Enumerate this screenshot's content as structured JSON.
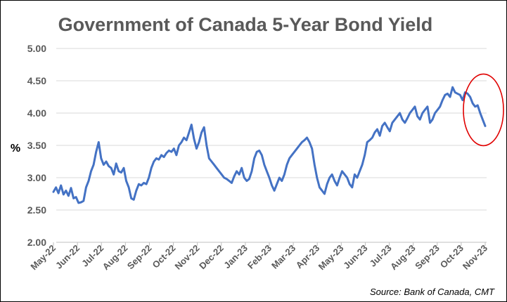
{
  "chart_data": {
    "type": "line",
    "title": "Government of Canada 5-Year Bond Yield",
    "ylabel": "%",
    "xlabel": "",
    "source": "Source: Bank of Canada, CMT",
    "ylim": [
      2.0,
      5.0
    ],
    "y_ticks": [
      "2.00",
      "2.50",
      "3.00",
      "3.50",
      "4.00",
      "4.50",
      "5.00"
    ],
    "x_ticks": [
      "May-22",
      "Jun-22",
      "Jul-22",
      "Aug-22",
      "Sep-22",
      "Oct-22",
      "Nov-22",
      "Dec-22",
      "Jan-23",
      "Feb-23",
      "Mar-23",
      "Apr-23",
      "May-23",
      "Jun-23",
      "Jul-23",
      "Aug-23",
      "Sep-23",
      "Oct-23",
      "Nov-23"
    ],
    "grid": true,
    "line_color": "#4472C4",
    "annotation": {
      "type": "red-ellipse",
      "color": "#E00000",
      "around": "Nov-23"
    },
    "series": [
      {
        "x_start": "May-22",
        "x_end": "Nov-23",
        "values": [
          2.78,
          2.85,
          2.76,
          2.88,
          2.74,
          2.8,
          2.72,
          2.84,
          2.68,
          2.7,
          2.61,
          2.62,
          2.64,
          2.85,
          2.95,
          3.1,
          3.2,
          3.4,
          3.55,
          3.3,
          3.2,
          3.25,
          3.18,
          3.15,
          3.05,
          3.22,
          3.1,
          3.08,
          3.15,
          2.95,
          2.85,
          2.68,
          2.66,
          2.8,
          2.9,
          2.88,
          2.92,
          2.9,
          3.0,
          3.15,
          3.25,
          3.3,
          3.28,
          3.35,
          3.32,
          3.38,
          3.42,
          3.4,
          3.45,
          3.35,
          3.5,
          3.55,
          3.62,
          3.58,
          3.7,
          3.82,
          3.6,
          3.45,
          3.55,
          3.7,
          3.78,
          3.5,
          3.3,
          3.25,
          3.2,
          3.15,
          3.1,
          3.05,
          3.0,
          2.98,
          2.95,
          2.92,
          3.02,
          3.1,
          3.05,
          3.15,
          3.0,
          2.95,
          2.98,
          3.1,
          3.3,
          3.4,
          3.42,
          3.35,
          3.2,
          3.1,
          3.0,
          2.88,
          2.8,
          2.9,
          3.0,
          2.95,
          3.05,
          3.2,
          3.3,
          3.35,
          3.4,
          3.45,
          3.5,
          3.55,
          3.58,
          3.62,
          3.55,
          3.45,
          3.2,
          3.0,
          2.85,
          2.8,
          2.75,
          2.9,
          3.0,
          3.05,
          2.95,
          2.88,
          3.0,
          3.1,
          3.05,
          3.0,
          2.9,
          2.85,
          3.05,
          3.0,
          3.1,
          3.2,
          3.35,
          3.55,
          3.58,
          3.62,
          3.7,
          3.75,
          3.65,
          3.8,
          3.85,
          3.78,
          3.72,
          3.85,
          3.9,
          3.95,
          4.0,
          3.9,
          3.85,
          3.92,
          4.0,
          4.05,
          4.1,
          3.95,
          3.9,
          4.0,
          4.05,
          4.1,
          3.85,
          3.9,
          4.0,
          4.05,
          4.1,
          4.2,
          4.28,
          4.3,
          4.25,
          4.4,
          4.32,
          4.3,
          4.28,
          4.2,
          4.32,
          4.3,
          4.25,
          4.15,
          4.1,
          4.12,
          4.0,
          3.9,
          3.8
        ]
      }
    ]
  }
}
